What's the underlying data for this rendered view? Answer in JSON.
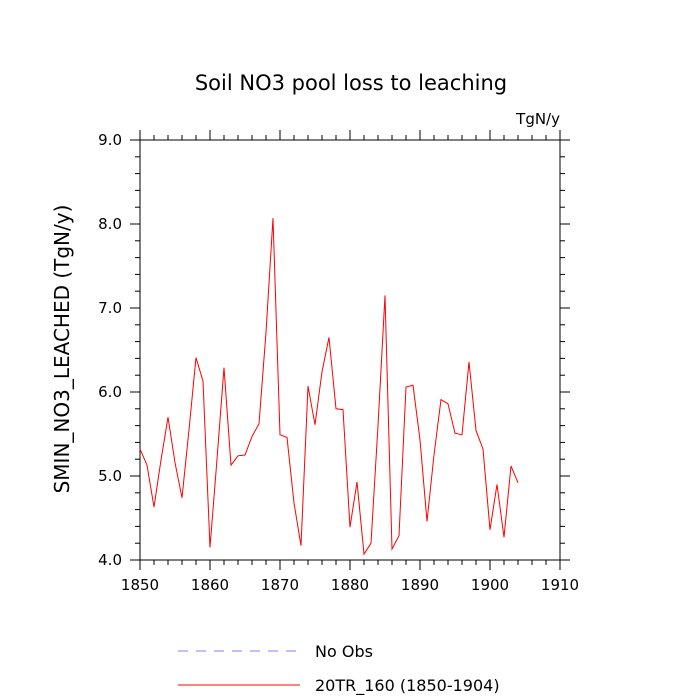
{
  "chart_data": {
    "type": "line",
    "title": "Soil NO3 pool loss to leaching",
    "units": "TgN/y",
    "xlabel": "",
    "ylabel": "SMIN_NO3_LEACHED  (TgN/y)",
    "xlim": [
      1850,
      1910
    ],
    "ylim": [
      4.0,
      9.0
    ],
    "x_ticks": [
      1850,
      1860,
      1870,
      1880,
      1890,
      1900,
      1910
    ],
    "y_ticks": [
      4.0,
      5.0,
      6.0,
      7.0,
      8.0,
      9.0
    ],
    "y_tick_labels": [
      "4.0",
      "5.0",
      "6.0",
      "7.0",
      "8.0",
      "9.0"
    ],
    "legend": [
      {
        "label": "No Obs",
        "color": "#8080ff",
        "style": "dashed"
      },
      {
        "label": "20TR_160 (1850-1904)",
        "color": "#ff0000",
        "style": "solid"
      }
    ],
    "series": [
      {
        "name": "20TR_160 (1850-1904)",
        "color": "#ff0000",
        "x": [
          1850,
          1851,
          1852,
          1853,
          1854,
          1855,
          1856,
          1857,
          1858,
          1859,
          1860,
          1861,
          1862,
          1863,
          1864,
          1865,
          1866,
          1867,
          1868,
          1869,
          1870,
          1871,
          1872,
          1873,
          1874,
          1875,
          1876,
          1877,
          1878,
          1879,
          1880,
          1881,
          1882,
          1883,
          1884,
          1885,
          1886,
          1887,
          1888,
          1889,
          1890,
          1891,
          1892,
          1893,
          1894,
          1895,
          1896,
          1897,
          1898,
          1899,
          1900,
          1901,
          1902,
          1903,
          1904
        ],
        "values": [
          5.32,
          5.13,
          4.63,
          5.19,
          5.7,
          5.16,
          4.74,
          5.55,
          6.41,
          6.13,
          4.15,
          5.2,
          6.29,
          5.13,
          5.24,
          5.25,
          5.47,
          5.62,
          6.71,
          8.07,
          5.49,
          5.46,
          4.68,
          4.17,
          6.07,
          5.61,
          6.24,
          6.65,
          5.8,
          5.79,
          4.39,
          4.93,
          4.07,
          4.2,
          5.6,
          7.15,
          4.13,
          4.29,
          6.06,
          6.08,
          5.43,
          4.46,
          5.25,
          5.91,
          5.86,
          5.51,
          5.49,
          6.36,
          5.54,
          5.32,
          4.36,
          4.9,
          4.27,
          5.12,
          4.92
        ]
      }
    ]
  }
}
